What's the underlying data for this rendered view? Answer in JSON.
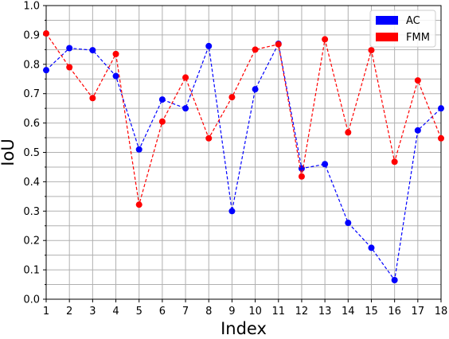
{
  "chart_data": {
    "type": "line",
    "xlabel": "Index",
    "ylabel": "IoU",
    "xlim": [
      1,
      18
    ],
    "ylim": [
      0,
      1.0
    ],
    "xticks": [
      "1",
      "2",
      "3",
      "4",
      "5",
      "6",
      "7",
      "8",
      "9",
      "10",
      "11",
      "12",
      "13",
      "14",
      "15",
      "16",
      "17",
      "18"
    ],
    "yticks": [
      "0.0",
      "0.1",
      "0.2",
      "0.3",
      "0.4",
      "0.5",
      "0.6",
      "0.7",
      "0.8",
      "0.9",
      "1.0"
    ],
    "grid": true,
    "minor_grid": true,
    "legend_position": "top-right",
    "x": [
      1,
      2,
      3,
      4,
      5,
      6,
      7,
      8,
      9,
      10,
      11,
      12,
      13,
      14,
      15,
      16,
      17,
      18
    ],
    "series": [
      {
        "name": "AC",
        "color": "#0000ff",
        "style": "dashed-with-dots",
        "values": [
          0.78,
          0.855,
          0.848,
          0.76,
          0.51,
          0.68,
          0.65,
          0.862,
          0.3,
          0.715,
          0.87,
          0.445,
          0.46,
          0.26,
          0.175,
          0.065,
          0.575,
          0.65
        ]
      },
      {
        "name": "FMM",
        "color": "#ff0000",
        "style": "dashed-with-dots",
        "values": [
          0.905,
          0.79,
          0.685,
          0.835,
          0.322,
          0.605,
          0.755,
          0.548,
          0.688,
          0.85,
          0.868,
          0.418,
          0.885,
          0.568,
          0.848,
          0.468,
          0.745,
          0.548
        ]
      }
    ]
  }
}
